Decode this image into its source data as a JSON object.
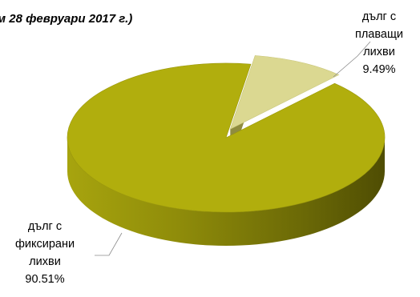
{
  "chart_data": {
    "type": "pie",
    "title": "м 28 февруари 2017 г.)",
    "style": "3d",
    "colors": {
      "fixed_top": "#b1ae0d",
      "fixed_side_light": "#a7a40e",
      "fixed_side_dark": "#4f4d03",
      "floating_top": "#dbd891",
      "floating_side": "#a09e4a"
    },
    "series": [
      {
        "slices": [
          {
            "label_lines": [
              "дълг с",
              "плаващи",
              "лихви"
            ],
            "value": 9.49,
            "value_label": "9.49%",
            "exploded": true
          },
          {
            "label_lines": [
              "дълг с",
              "фиксирани",
              "лихви"
            ],
            "value": 90.51,
            "value_label": "90.51%",
            "exploded": false
          }
        ]
      }
    ]
  }
}
